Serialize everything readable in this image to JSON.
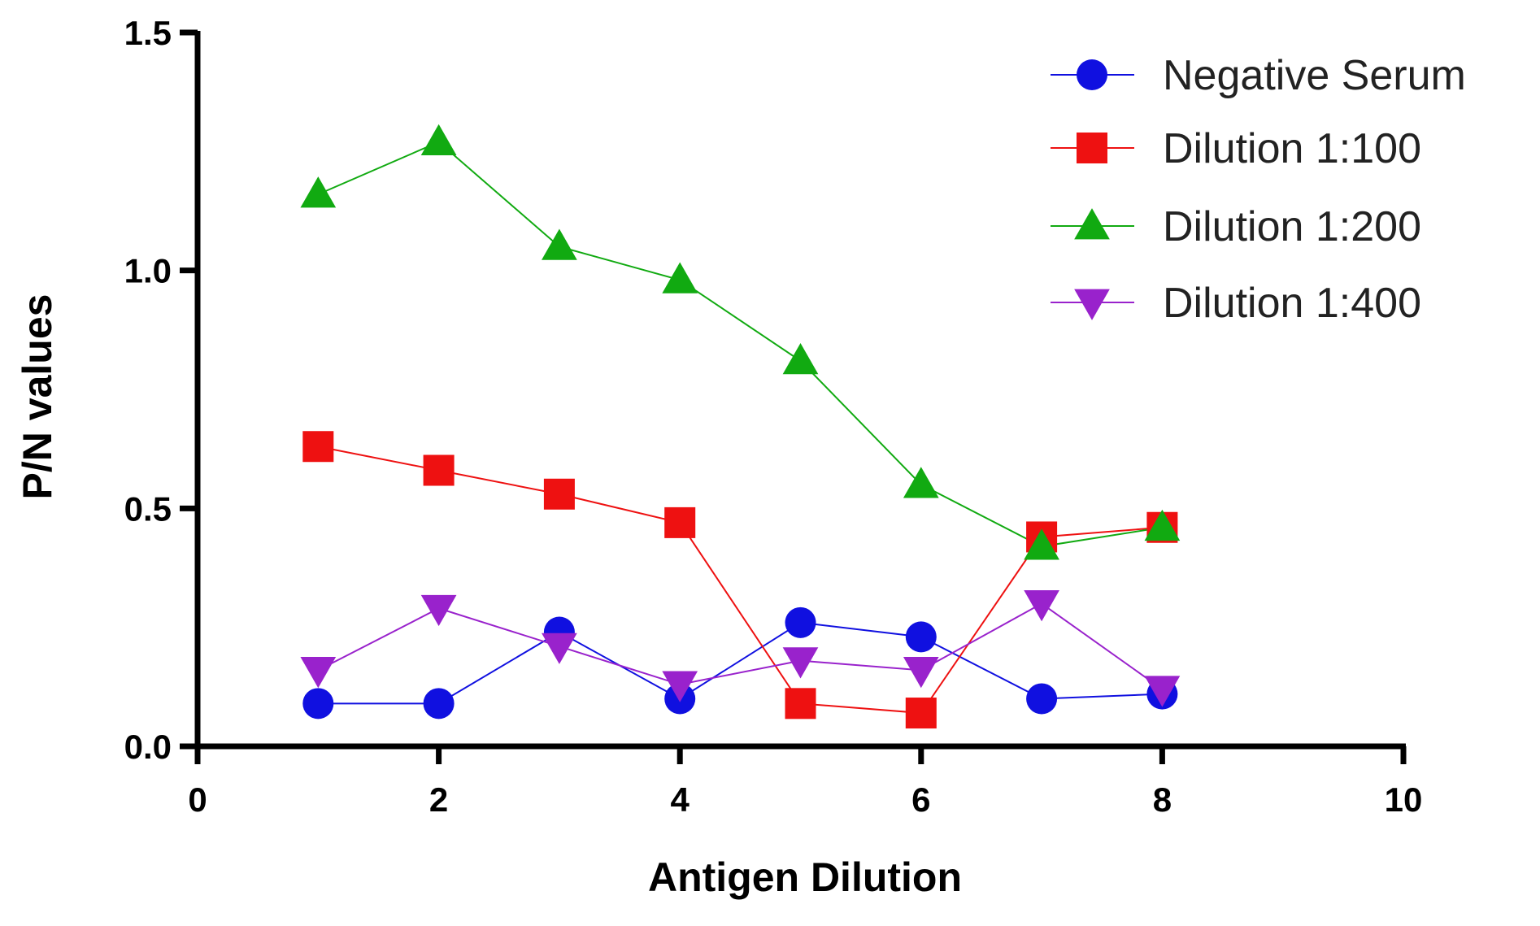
{
  "chart_data": {
    "type": "line",
    "xlabel": "Antigen Dilution",
    "ylabel": "P/N values",
    "xlim": [
      0,
      10
    ],
    "ylim": [
      0,
      1.5
    ],
    "xticks": [
      0,
      2,
      4,
      6,
      8,
      10
    ],
    "yticks": [
      0.0,
      0.5,
      1.0,
      1.5
    ],
    "xtick_labels": [
      "0",
      "2",
      "4",
      "6",
      "8",
      "10"
    ],
    "ytick_labels": [
      "0.0",
      "0.5",
      "1.0",
      "1.5"
    ],
    "grid": false,
    "legend_position": "top-right",
    "x": [
      1,
      2,
      3,
      4,
      5,
      6,
      7,
      8
    ],
    "series": [
      {
        "name": "Negative Serum",
        "marker": "circle",
        "color": "#1010e0",
        "values": [
          0.09,
          0.09,
          0.24,
          0.1,
          0.26,
          0.23,
          0.1,
          0.11
        ]
      },
      {
        "name": "Dilution 1:100",
        "marker": "square",
        "color": "#ee1111",
        "values": [
          0.63,
          0.58,
          0.53,
          0.47,
          0.09,
          0.07,
          0.44,
          0.46
        ]
      },
      {
        "name": "Dilution 1:200",
        "marker": "triangle-up",
        "color": "#11aa11",
        "values": [
          1.16,
          1.27,
          1.05,
          0.98,
          0.81,
          0.55,
          0.42,
          0.46
        ]
      },
      {
        "name": "Dilution 1:400",
        "marker": "triangle-down",
        "color": "#9922cc",
        "values": [
          0.16,
          0.29,
          0.21,
          0.13,
          0.18,
          0.16,
          0.3,
          0.12
        ]
      }
    ]
  }
}
